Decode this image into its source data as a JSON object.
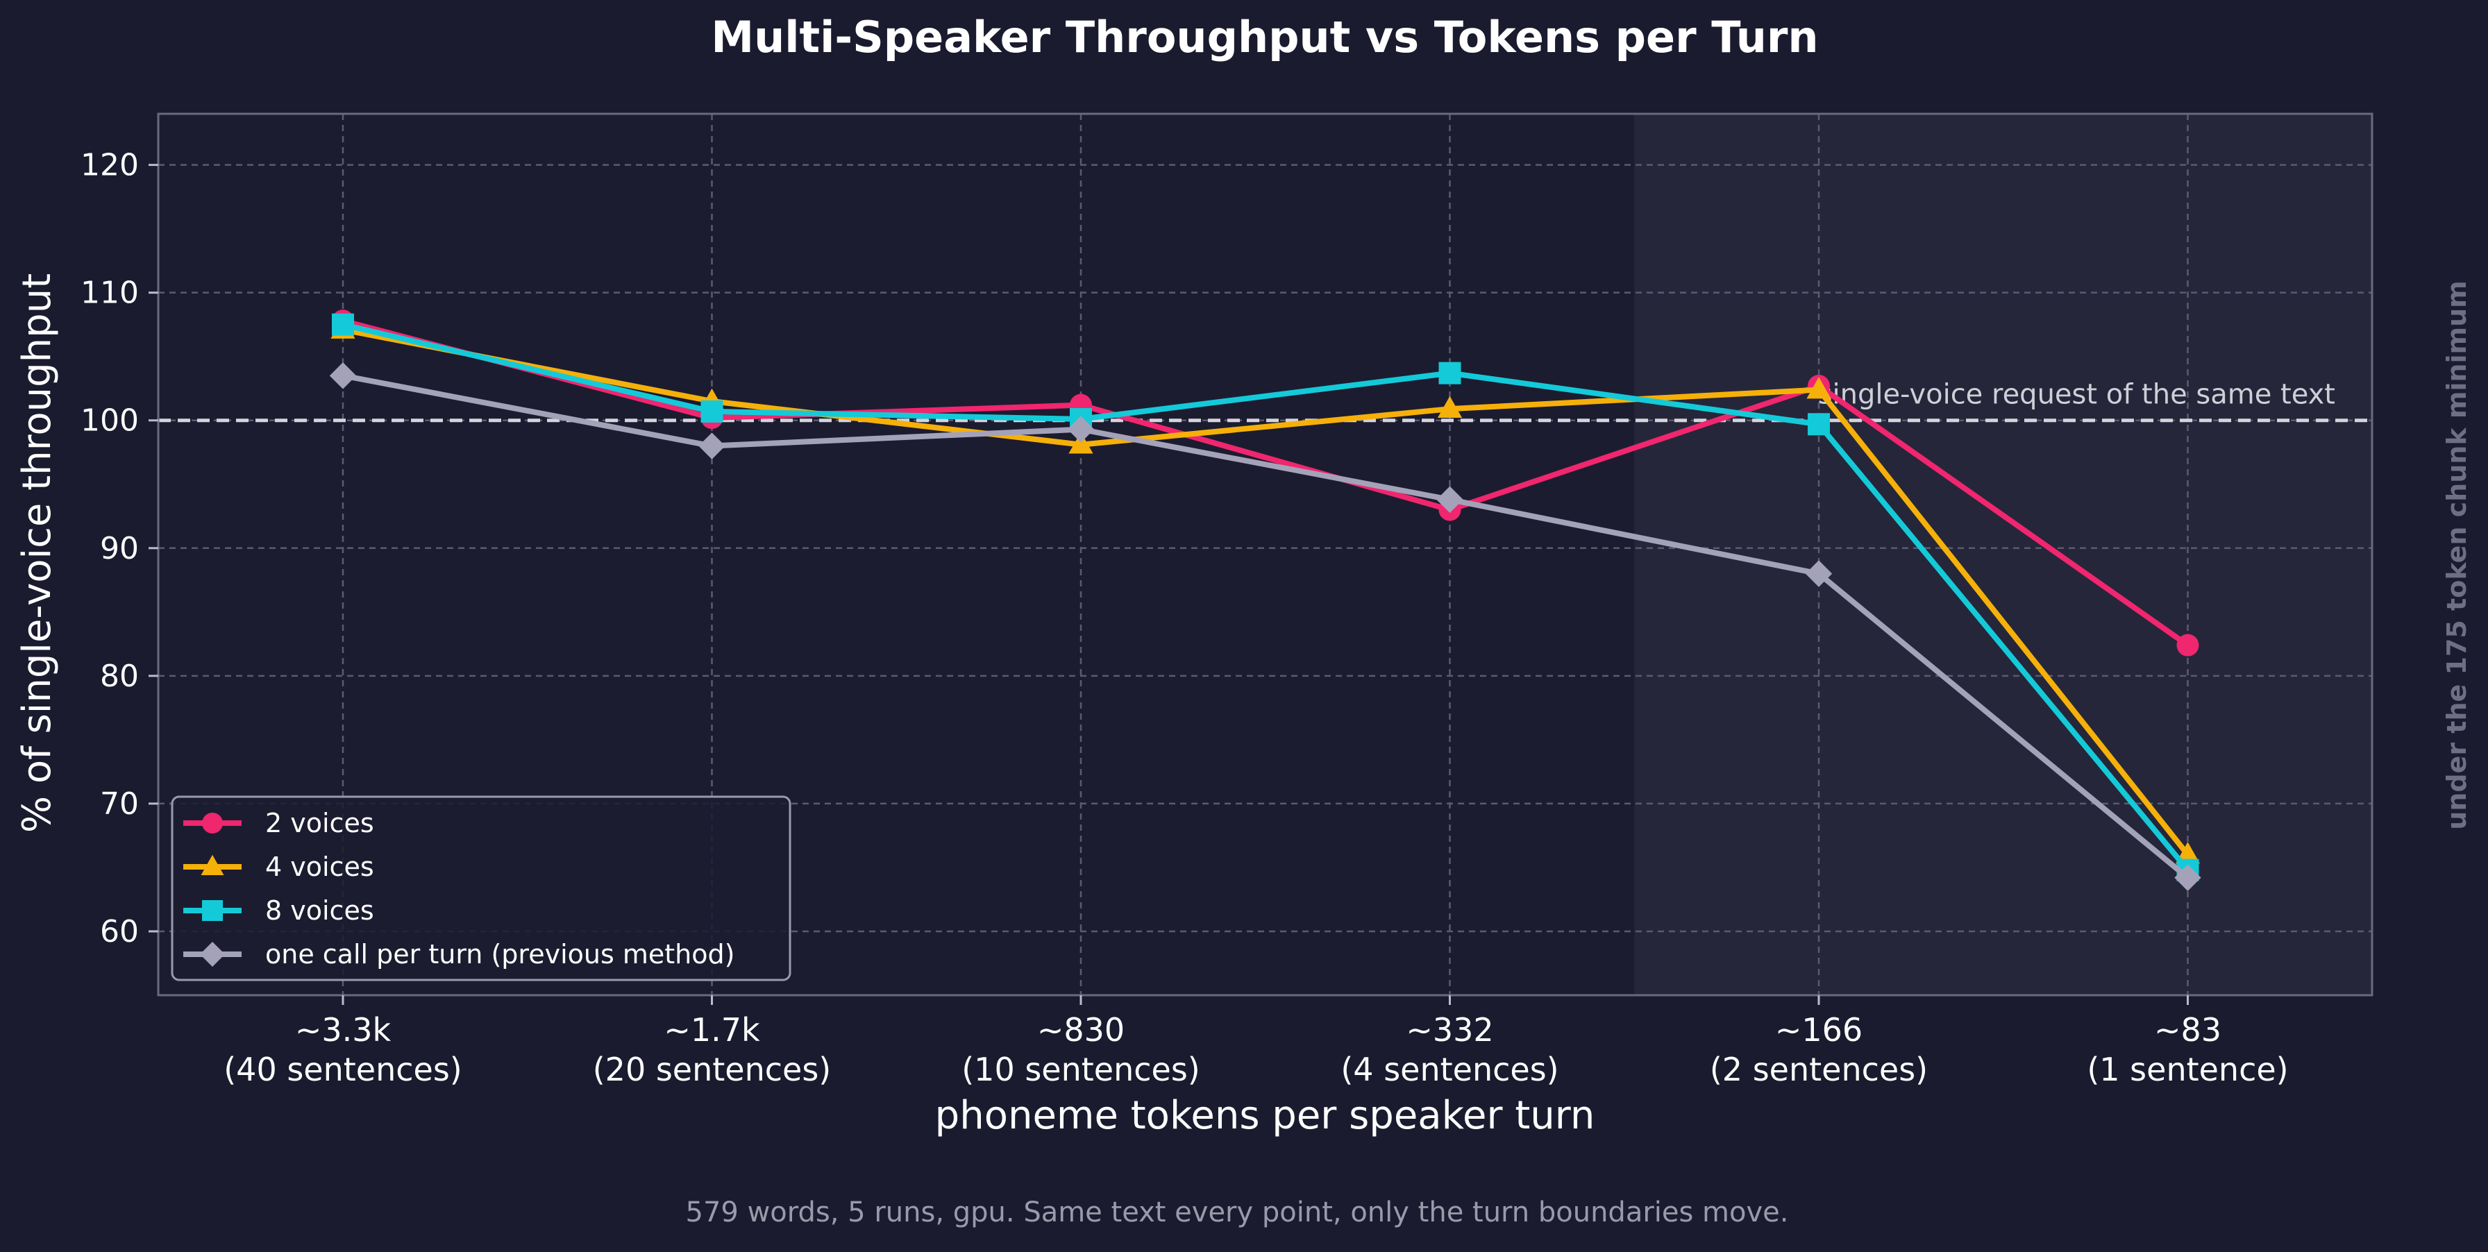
{
  "chart_data": {
    "type": "line",
    "title": "Multi-Speaker Throughput vs Tokens per Turn",
    "xlabel": "phoneme tokens per speaker turn",
    "ylabel": "% of single-voice throughput",
    "footnote": "579 words, 5 runs, gpu. Same text every point, only the turn boundaries move.",
    "side_note": "under the 175 token chunk minimum",
    "categories": [
      {
        "top": "~3.3k",
        "bottom": "(40 sentences)"
      },
      {
        "top": "~1.7k",
        "bottom": "(20 sentences)"
      },
      {
        "top": "~830",
        "bottom": "(10 sentences)"
      },
      {
        "top": "~332",
        "bottom": "(4 sentences)"
      },
      {
        "top": "~166",
        "bottom": "(2 sentences)"
      },
      {
        "top": "~83",
        "bottom": "(1 sentence)"
      }
    ],
    "ylim": [
      55,
      124
    ],
    "yticks": [
      60,
      70,
      80,
      90,
      100,
      110,
      120
    ],
    "grid": true,
    "legend_position": "lower-left",
    "reference_line": {
      "value": 100,
      "label": "single-voice request of the same text"
    },
    "shaded_region": {
      "from_category_index": 3.5,
      "to_category_index": 5.5
    },
    "series": [
      {
        "name": "2 voices",
        "color": "#f0266f",
        "marker": "circle",
        "values": [
          107.8,
          100.2,
          101.2,
          93.0,
          102.7,
          82.4
        ]
      },
      {
        "name": "4 voices",
        "color": "#f5b00a",
        "marker": "triangle",
        "values": [
          107.1,
          101.5,
          98.1,
          100.9,
          102.4,
          66.0
        ]
      },
      {
        "name": "8 voices",
        "color": "#14cad8",
        "marker": "square",
        "values": [
          107.5,
          100.7,
          100.1,
          103.7,
          99.7,
          64.8
        ]
      },
      {
        "name": "one call per turn (previous method)",
        "color": "#a4a2b8",
        "marker": "diamond",
        "values": [
          103.5,
          98.0,
          99.3,
          93.8,
          88.0,
          64.2
        ]
      }
    ]
  }
}
